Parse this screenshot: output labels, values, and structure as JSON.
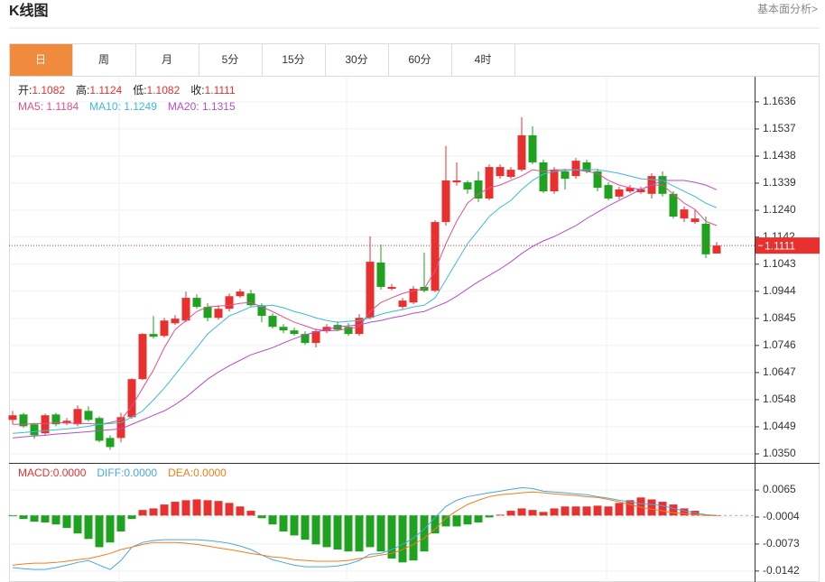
{
  "header": {
    "title": "K线图",
    "link": "基本面分析>"
  },
  "tabs": {
    "items": [
      "日",
      "周",
      "月",
      "5分",
      "15分",
      "30分",
      "60分",
      "4时"
    ],
    "active": 0
  },
  "chart_data": [
    {
      "type": "candlestick",
      "info_labels": [
        "开:",
        "高:",
        "低:",
        "收:"
      ],
      "legend_separator": ": ",
      "up_color": "#e8312f",
      "down_color": "#1fa21f",
      "open": [
        1.0474,
        1.0494,
        1.0458,
        1.0425,
        1.0494,
        1.0461,
        1.0458,
        1.0507,
        1.0481,
        1.0408,
        1.0408,
        1.0484,
        1.0623,
        1.0788,
        1.0781,
        1.0827,
        1.0837,
        1.092,
        1.0887,
        1.0847,
        1.088,
        1.0926,
        1.0936,
        1.0893,
        1.0854,
        1.0814,
        1.0801,
        1.0788,
        1.0755,
        1.0798,
        1.0821,
        1.0814,
        1.0788,
        1.0847,
        1.1049,
        1.0953,
        1.0887,
        1.0903,
        1.096,
        1.0946,
        1.1197,
        1.1342,
        1.1342,
        1.1349,
        1.1283,
        1.1365,
        1.1362,
        1.1388,
        1.1514,
        1.1415,
        1.1309,
        1.1382,
        1.1365,
        1.1415,
        1.1382,
        1.1332,
        1.129,
        1.1309,
        1.1306,
        1.13,
        1.1365,
        1.13,
        1.121,
        1.1197,
        1.1191,
        1.1082
      ],
      "high": [
        1.0507,
        1.05,
        1.0461,
        1.0497,
        1.05,
        1.0481,
        1.0527,
        1.0524,
        1.0487,
        1.0418,
        1.05,
        1.0626,
        1.0791,
        1.0854,
        1.0847,
        1.0857,
        1.0943,
        1.0933,
        1.09,
        1.0893,
        1.0936,
        1.0953,
        1.095,
        1.09,
        1.0864,
        1.0824,
        1.0811,
        1.0798,
        1.0808,
        1.0824,
        1.0834,
        1.0827,
        1.086,
        1.1145,
        1.1115,
        1.097,
        1.092,
        1.0963,
        1.1085,
        1.1204,
        1.1475,
        1.1415,
        1.1349,
        1.1382,
        1.1408,
        1.1408,
        1.1398,
        1.158,
        1.1547,
        1.1425,
        1.1398,
        1.1392,
        1.1431,
        1.1425,
        1.1392,
        1.1342,
        1.1326,
        1.1332,
        1.1326,
        1.1375,
        1.1382,
        1.131,
        1.1253,
        1.124,
        1.1217,
        1.1124
      ],
      "low": [
        1.0458,
        1.0445,
        1.0405,
        1.0418,
        1.0451,
        1.0455,
        1.0451,
        1.0468,
        1.0392,
        1.0365,
        1.0392,
        1.0478,
        1.062,
        1.0771,
        1.0775,
        1.0821,
        1.0831,
        1.088,
        1.0834,
        1.084,
        1.087,
        1.092,
        1.0887,
        1.0831,
        1.0808,
        1.0791,
        1.0781,
        1.0748,
        1.0739,
        1.0791,
        1.0798,
        1.0781,
        1.0781,
        1.0841,
        1.095,
        1.0947,
        1.088,
        1.0897,
        1.094,
        1.094,
        1.1184,
        1.133,
        1.13,
        1.127,
        1.1276,
        1.1355,
        1.1355,
        1.1382,
        1.1408,
        1.1303,
        1.13,
        1.1316,
        1.1355,
        1.1375,
        1.1309,
        1.1276,
        1.128,
        1.1303,
        1.13,
        1.1283,
        1.129,
        1.121,
        1.1197,
        1.119,
        1.1065,
        1.1082
      ],
      "close": [
        1.0491,
        1.0451,
        1.0418,
        1.0491,
        1.0458,
        1.0471,
        1.0514,
        1.0474,
        1.0398,
        1.0375,
        1.0484,
        1.0623,
        1.0788,
        1.0778,
        1.0837,
        1.0844,
        1.092,
        1.0887,
        1.0847,
        1.088,
        1.0926,
        1.0943,
        1.0893,
        1.0854,
        1.0814,
        1.0801,
        1.0788,
        1.0755,
        1.0798,
        1.0814,
        1.0804,
        1.0788,
        1.0847,
        1.1052,
        1.096,
        1.096,
        1.091,
        1.0953,
        1.0946,
        1.1197,
        1.1349,
        1.1349,
        1.1316,
        1.1283,
        1.1398,
        1.1398,
        1.1388,
        1.1514,
        1.1415,
        1.1309,
        1.1388,
        1.1355,
        1.1421,
        1.1382,
        1.1322,
        1.1283,
        1.1316,
        1.1322,
        1.1316,
        1.1365,
        1.13,
        1.1217,
        1.1243,
        1.121,
        1.1079,
        1.1111
      ],
      "series": [
        {
          "name": "MA5",
          "color": "#e0508c",
          "values": [
            1.0458,
            1.0458,
            1.0461,
            1.0461,
            1.0464,
            1.0464,
            1.0461,
            1.0461,
            1.0458,
            1.0464,
            1.0474,
            1.0524,
            1.059,
            1.0656,
            1.0738,
            1.0804,
            1.0837,
            1.087,
            1.0887,
            1.089,
            1.0893,
            1.09,
            1.0903,
            1.0887,
            1.087,
            1.085,
            1.0831,
            1.0818,
            1.0804,
            1.0801,
            1.0801,
            1.0808,
            1.0814,
            1.087,
            1.0903,
            1.092,
            1.0936,
            1.0946,
            1.0953,
            1.1019,
            1.1118,
            1.12,
            1.1266,
            1.1299,
            1.1322,
            1.1332,
            1.1349,
            1.1365,
            1.1388,
            1.1382,
            1.1388,
            1.1388,
            1.1388,
            1.1382,
            1.1375,
            1.1349,
            1.1332,
            1.1322,
            1.1316,
            1.1332,
            1.1332,
            1.1299,
            1.1266,
            1.1243,
            1.12,
            1.1184
          ]
        },
        {
          "name": "MA10",
          "color": "#3fbad6",
          "values": [
            1.0425,
            1.0428,
            1.0431,
            1.0435,
            1.0438,
            1.0441,
            1.0445,
            1.0451,
            1.0458,
            1.0461,
            1.0464,
            1.0484,
            1.0507,
            1.0547,
            1.059,
            1.0639,
            1.0689,
            1.0738,
            1.0788,
            1.0821,
            1.0854,
            1.087,
            1.0887,
            1.089,
            1.0893,
            1.0884,
            1.087,
            1.086,
            1.0847,
            1.0837,
            1.0831,
            1.0834,
            1.0837,
            1.0847,
            1.086,
            1.087,
            1.0877,
            1.0887,
            1.0893,
            1.092,
            1.0986,
            1.1052,
            1.1118,
            1.1167,
            1.1217,
            1.125,
            1.1276,
            1.1316,
            1.1349,
            1.1372,
            1.1382,
            1.1385,
            1.1388,
            1.1388,
            1.1388,
            1.1382,
            1.1375,
            1.1365,
            1.1355,
            1.1352,
            1.1349,
            1.1329,
            1.1309,
            1.129,
            1.1266,
            1.1249
          ]
        },
        {
          "name": "MA20",
          "color": "#b44fc6",
          "values": [
            1.0408,
            1.0412,
            1.0415,
            1.0418,
            1.0422,
            1.0425,
            1.0428,
            1.0431,
            1.0435,
            1.0438,
            1.0441,
            1.0458,
            1.0474,
            1.0491,
            1.0507,
            1.053,
            1.0557,
            1.059,
            1.0623,
            1.0649,
            1.0672,
            1.0692,
            1.0712,
            1.0725,
            1.0738,
            1.0755,
            1.0771,
            1.0785,
            1.0795,
            1.0804,
            1.0814,
            1.0818,
            1.0821,
            1.0831,
            1.0837,
            1.0847,
            1.0854,
            1.0864,
            1.087,
            1.0887,
            1.0903,
            1.0926,
            1.0953,
            1.0979,
            1.1002,
            1.1025,
            1.1052,
            1.1082,
            1.1108,
            1.1128,
            1.1144,
            1.1164,
            1.1184,
            1.121,
            1.1233,
            1.1256,
            1.1276,
            1.1296,
            1.1316,
            1.1332,
            1.1349,
            1.1349,
            1.1349,
            1.1342,
            1.1332,
            1.1315
          ]
        }
      ],
      "ylim": [
        1.0317,
        1.1728
      ],
      "yticks": [
        1.1636,
        1.1537,
        1.1438,
        1.1339,
        {
          "value": 1.124,
          "label": "1.1240"
        },
        1.1142,
        1.1043,
        1.0944,
        1.0845,
        1.0746,
        1.0647,
        1.0548,
        1.0449,
        {
          "value": 1.035,
          "label": "1.0350"
        }
      ],
      "grid": true
    },
    {
      "type": "macd",
      "legend_separator": ":",
      "series": [
        {
          "name": "MACD",
          "type": "bar",
          "color": "#e8312f",
          "down_color": "#1fa21f",
          "legend_value": "0.0000",
          "values": [
            -0.0002,
            -0.0009,
            -0.0016,
            -0.0018,
            -0.0023,
            -0.0032,
            -0.0046,
            -0.006,
            -0.0081,
            -0.0069,
            -0.0041,
            -0.0009,
            0.0014,
            0.0018,
            0.0028,
            0.0035,
            0.0039,
            0.0041,
            0.0039,
            0.0037,
            0.0032,
            0.0023,
            0.0012,
            -0.0007,
            -0.0023,
            -0.0041,
            -0.0051,
            -0.0062,
            -0.0074,
            -0.0081,
            -0.0087,
            -0.0092,
            -0.0092,
            -0.0081,
            -0.0092,
            -0.011,
            -0.012,
            -0.0115,
            -0.0092,
            -0.0046,
            -0.0028,
            -0.0028,
            -0.0023,
            -0.0018,
            -0.0005,
            0.0002,
            0.0012,
            0.0018,
            0.0014,
            0.0009,
            0.0018,
            0.0023,
            0.0023,
            0.0023,
            0.0025,
            0.0023,
            0.0032,
            0.0039,
            0.0046,
            0.0041,
            0.0035,
            0.0028,
            0.0018,
            0.0012,
            0.0002,
            0
          ]
        },
        {
          "name": "DIFF",
          "type": "line",
          "color": "#4aa6e0",
          "legend_value": "0.0000",
          "values": [
            -0.0133,
            -0.0136,
            -0.0138,
            -0.0138,
            -0.0133,
            -0.0127,
            -0.012,
            -0.0115,
            -0.0127,
            -0.0138,
            -0.0115,
            -0.0081,
            -0.0069,
            -0.0064,
            -0.0062,
            -0.0062,
            -0.0062,
            -0.0062,
            -0.0064,
            -0.0067,
            -0.0071,
            -0.0078,
            -0.0087,
            -0.0101,
            -0.0113,
            -0.012,
            -0.0127,
            -0.0131,
            -0.0131,
            -0.0131,
            -0.0129,
            -0.0124,
            -0.0115,
            -0.0099,
            -0.0097,
            -0.0087,
            -0.0074,
            -0.0058,
            -0.0035,
            -0.0005,
            0.0023,
            0.0039,
            0.0048,
            0.0053,
            0.0058,
            0.0062,
            0.0067,
            0.0071,
            0.0069,
            0.0062,
            0.006,
            0.0058,
            0.0055,
            0.0053,
            0.0048,
            0.0044,
            0.0039,
            0.0035,
            0.003,
            0.0028,
            0.0025,
            0.0018,
            0.0012,
            0.0007,
            0.0002,
            0
          ]
        },
        {
          "name": "DEA",
          "type": "line",
          "color": "#f07d1c",
          "legend_value": "0.0000",
          "values": [
            -0.0127,
            -0.0124,
            -0.0122,
            -0.0122,
            -0.012,
            -0.0117,
            -0.0113,
            -0.011,
            -0.0104,
            -0.0097,
            -0.0087,
            -0.0081,
            -0.0074,
            -0.0069,
            -0.0069,
            -0.0069,
            -0.0071,
            -0.0074,
            -0.0078,
            -0.0083,
            -0.0087,
            -0.0092,
            -0.0097,
            -0.0101,
            -0.0106,
            -0.0108,
            -0.0113,
            -0.0115,
            -0.0117,
            -0.0117,
            -0.0117,
            -0.0115,
            -0.011,
            -0.0106,
            -0.0101,
            -0.0097,
            -0.0087,
            -0.0074,
            -0.0058,
            -0.0035,
            -0.0007,
            0.0012,
            0.0028,
            0.0039,
            0.0048,
            0.0053,
            0.0055,
            0.0058,
            0.006,
            0.0058,
            0.0055,
            0.0053,
            0.0051,
            0.0048,
            0.0046,
            0.0041,
            0.0035,
            0.0028,
            0.0021,
            0.0016,
            0.0012,
            0.0007,
            0.0005,
            0.0002,
            0,
            0
          ]
        }
      ],
      "ylim": [
        -0.017,
        0.0132
      ],
      "yticks": [
        0.0065,
        -0.0004,
        -0.0073,
        -0.0142
      ],
      "grid": true
    }
  ]
}
